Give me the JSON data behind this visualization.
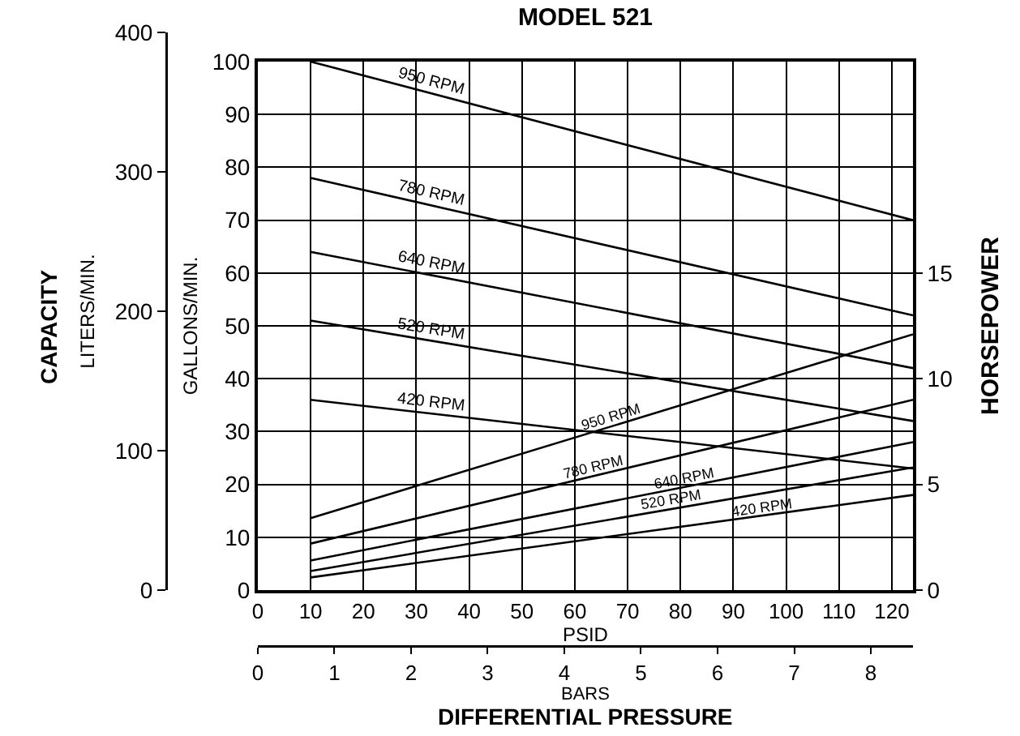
{
  "chart_data": {
    "type": "line",
    "title": "MODEL 521",
    "xlabel": "PSID",
    "ylabel": "GALLONS/MIN.",
    "y2label": "HORSEPOWER",
    "y3label": "LITERS/MIN.",
    "x2label": "BARS",
    "annotations": [
      "CAPACITY",
      "DIFFERENTIAL PRESSURE"
    ],
    "x": [
      10,
      124
    ],
    "series": [
      {
        "name": "950 RPM",
        "color": "#000000",
        "values": [
          100,
          70
        ]
      },
      {
        "name": "780 RPM",
        "color": "#000000",
        "values": [
          78,
          52
        ]
      },
      {
        "name": "640 RPM",
        "color": "#000000",
        "values": [
          64,
          42
        ]
      },
      {
        "name": "520 RPM",
        "color": "#000000",
        "values": [
          51,
          32
        ]
      },
      {
        "name": "420 RPM",
        "color": "#000000",
        "values": [
          36,
          23
        ]
      },
      {
        "name": "950 RPM",
        "color": "#000000",
        "axis": "y2",
        "values": [
          3.4,
          12.1
        ]
      },
      {
        "name": "780 RPM",
        "color": "#000000",
        "axis": "y2",
        "values": [
          2.2,
          9.0
        ]
      },
      {
        "name": "640 RPM",
        "color": "#000000",
        "axis": "y2",
        "values": [
          1.4,
          7.0
        ]
      },
      {
        "name": "520 RPM",
        "color": "#000000",
        "axis": "y2",
        "values": [
          0.9,
          5.8
        ]
      },
      {
        "name": "420 RPM",
        "color": "#000000",
        "axis": "y2",
        "values": [
          0.6,
          4.5
        ]
      }
    ],
    "xlim": [
      0,
      124
    ],
    "xticks": [
      0,
      10,
      20,
      30,
      40,
      50,
      60,
      70,
      80,
      90,
      100,
      110,
      120
    ],
    "ylim": [
      0,
      100
    ],
    "yticks": [
      0,
      10,
      20,
      30,
      40,
      50,
      60,
      70,
      80,
      90,
      100
    ],
    "y2lim": [
      0,
      25
    ],
    "y2ticks": [
      0,
      5,
      10,
      15
    ],
    "y3lim": [
      0,
      400
    ],
    "y3ticks": [
      0,
      100,
      200,
      300,
      400
    ],
    "x2lim": [
      0,
      8.55
    ],
    "x2ticks": [
      0,
      1,
      2,
      3,
      4,
      5,
      6,
      7,
      8
    ],
    "grid": true,
    "marker": "none",
    "line_style": "solid"
  }
}
